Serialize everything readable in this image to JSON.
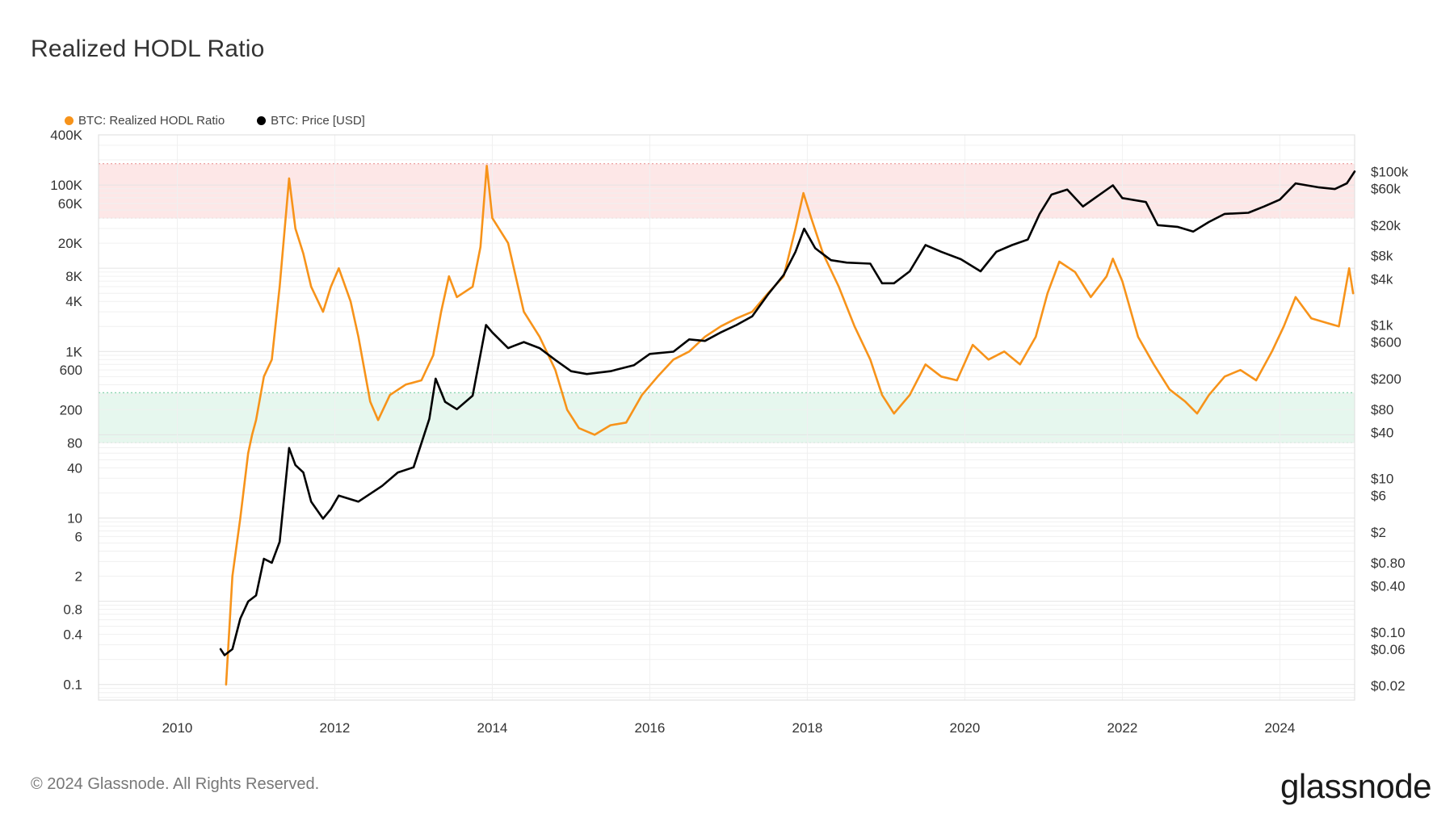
{
  "title": "Realized HODL Ratio",
  "footer": "© 2024 Glassnode. All Rights Reserved.",
  "brand": "glassnode",
  "colors": {
    "hodl": "#f7931a",
    "price": "#000000",
    "upper_band": "#fde7e7",
    "lower_band": "#e6f7ee"
  },
  "chart_data": {
    "type": "line",
    "title": "Realized HODL Ratio",
    "legend": [
      {
        "name": "BTC: Realized HODL Ratio",
        "color": "#f7931a"
      },
      {
        "name": "BTC: Price [USD]",
        "color": "#000000"
      }
    ],
    "x_ticks": [
      "2010",
      "2012",
      "2014",
      "2016",
      "2018",
      "2020",
      "2022",
      "2024"
    ],
    "x_range": [
      2009.0,
      2024.95
    ],
    "left_axis": {
      "scale": "log",
      "range": [
        0.065,
        400000
      ],
      "ticks": [
        {
          "value": 400000,
          "label": "400K"
        },
        {
          "value": 100000,
          "label": "100K"
        },
        {
          "value": 60000,
          "label": "60K"
        },
        {
          "value": 20000,
          "label": "20K"
        },
        {
          "value": 8000,
          "label": "8K"
        },
        {
          "value": 4000,
          "label": "4K"
        },
        {
          "value": 1000,
          "label": "1K"
        },
        {
          "value": 600,
          "label": "600"
        },
        {
          "value": 200,
          "label": "200"
        },
        {
          "value": 80,
          "label": "80"
        },
        {
          "value": 40,
          "label": "40"
        },
        {
          "value": 10,
          "label": "10"
        },
        {
          "value": 6,
          "label": "6"
        },
        {
          "value": 2,
          "label": "2"
        },
        {
          "value": 0.8,
          "label": "0.8"
        },
        {
          "value": 0.4,
          "label": "0.4"
        },
        {
          "value": 0.1,
          "label": "0.1"
        }
      ]
    },
    "right_axis": {
      "scale": "log",
      "range": [
        0.013,
        300000
      ],
      "ticks": [
        {
          "value": 100000,
          "label": "$100k"
        },
        {
          "value": 60000,
          "label": "$60k"
        },
        {
          "value": 20000,
          "label": "$20k"
        },
        {
          "value": 8000,
          "label": "$8k"
        },
        {
          "value": 4000,
          "label": "$4k"
        },
        {
          "value": 1000,
          "label": "$1k"
        },
        {
          "value": 600,
          "label": "$600"
        },
        {
          "value": 200,
          "label": "$200"
        },
        {
          "value": 80,
          "label": "$80"
        },
        {
          "value": 40,
          "label": "$40"
        },
        {
          "value": 10,
          "label": "$10"
        },
        {
          "value": 6,
          "label": "$6"
        },
        {
          "value": 2,
          "label": "$2"
        },
        {
          "value": 0.8,
          "label": "$0.80"
        },
        {
          "value": 0.4,
          "label": "$0.40"
        },
        {
          "value": 0.1,
          "label": "$0.10"
        },
        {
          "value": 0.06,
          "label": "$0.06"
        },
        {
          "value": 0.02,
          "label": "$0.02"
        }
      ]
    },
    "bands": [
      {
        "name": "upper",
        "from": 40000,
        "to": 180000
      },
      {
        "name": "lower",
        "from": 80,
        "to": 320
      }
    ],
    "series": [
      {
        "name": "BTC: Realized HODL Ratio",
        "axis": "left",
        "points": [
          [
            2010.62,
            0.1
          ],
          [
            2010.7,
            2
          ],
          [
            2010.8,
            10
          ],
          [
            2010.9,
            60
          ],
          [
            2010.95,
            100
          ],
          [
            2011.0,
            150
          ],
          [
            2011.1,
            500
          ],
          [
            2011.2,
            800
          ],
          [
            2011.3,
            6000
          ],
          [
            2011.42,
            120000
          ],
          [
            2011.5,
            30000
          ],
          [
            2011.6,
            15000
          ],
          [
            2011.7,
            6000
          ],
          [
            2011.85,
            3000
          ],
          [
            2011.95,
            6000
          ],
          [
            2012.05,
            10000
          ],
          [
            2012.2,
            4000
          ],
          [
            2012.3,
            1500
          ],
          [
            2012.45,
            250
          ],
          [
            2012.55,
            150
          ],
          [
            2012.7,
            300
          ],
          [
            2012.9,
            400
          ],
          [
            2013.1,
            450
          ],
          [
            2013.25,
            900
          ],
          [
            2013.35,
            3000
          ],
          [
            2013.45,
            8000
          ],
          [
            2013.55,
            4500
          ],
          [
            2013.75,
            6000
          ],
          [
            2013.85,
            18000
          ],
          [
            2013.93,
            170000
          ],
          [
            2014.0,
            40000
          ],
          [
            2014.2,
            20000
          ],
          [
            2014.4,
            3000
          ],
          [
            2014.6,
            1500
          ],
          [
            2014.8,
            600
          ],
          [
            2014.95,
            200
          ],
          [
            2015.1,
            120
          ],
          [
            2015.3,
            100
          ],
          [
            2015.5,
            130
          ],
          [
            2015.7,
            140
          ],
          [
            2015.9,
            300
          ],
          [
            2016.1,
            500
          ],
          [
            2016.3,
            800
          ],
          [
            2016.5,
            1000
          ],
          [
            2016.7,
            1500
          ],
          [
            2016.9,
            2000
          ],
          [
            2017.1,
            2500
          ],
          [
            2017.3,
            3000
          ],
          [
            2017.5,
            5000
          ],
          [
            2017.7,
            8000
          ],
          [
            2017.85,
            30000
          ],
          [
            2017.95,
            80000
          ],
          [
            2018.05,
            40000
          ],
          [
            2018.2,
            15000
          ],
          [
            2018.4,
            6000
          ],
          [
            2018.6,
            2000
          ],
          [
            2018.8,
            800
          ],
          [
            2018.95,
            300
          ],
          [
            2019.1,
            180
          ],
          [
            2019.3,
            300
          ],
          [
            2019.5,
            700
          ],
          [
            2019.7,
            500
          ],
          [
            2019.9,
            450
          ],
          [
            2020.1,
            1200
          ],
          [
            2020.3,
            800
          ],
          [
            2020.5,
            1000
          ],
          [
            2020.7,
            700
          ],
          [
            2020.9,
            1500
          ],
          [
            2021.05,
            5000
          ],
          [
            2021.2,
            12000
          ],
          [
            2021.4,
            9000
          ],
          [
            2021.6,
            4500
          ],
          [
            2021.8,
            8000
          ],
          [
            2021.88,
            13000
          ],
          [
            2022.0,
            7000
          ],
          [
            2022.2,
            1500
          ],
          [
            2022.4,
            700
          ],
          [
            2022.6,
            350
          ],
          [
            2022.8,
            250
          ],
          [
            2022.95,
            180
          ],
          [
            2023.1,
            300
          ],
          [
            2023.3,
            500
          ],
          [
            2023.5,
            600
          ],
          [
            2023.7,
            450
          ],
          [
            2023.9,
            1000
          ],
          [
            2024.05,
            2000
          ],
          [
            2024.2,
            4500
          ],
          [
            2024.4,
            2500
          ],
          [
            2024.6,
            2200
          ],
          [
            2024.75,
            2000
          ],
          [
            2024.88,
            10000
          ],
          [
            2024.93,
            5000
          ]
        ]
      },
      {
        "name": "BTC: Price [USD]",
        "axis": "right",
        "points": [
          [
            2010.55,
            0.06
          ],
          [
            2010.6,
            0.05
          ],
          [
            2010.7,
            0.06
          ],
          [
            2010.8,
            0.15
          ],
          [
            2010.9,
            0.25
          ],
          [
            2011.0,
            0.3
          ],
          [
            2011.1,
            0.9
          ],
          [
            2011.2,
            0.8
          ],
          [
            2011.3,
            1.5
          ],
          [
            2011.42,
            25
          ],
          [
            2011.5,
            15
          ],
          [
            2011.6,
            12
          ],
          [
            2011.7,
            5
          ],
          [
            2011.85,
            3
          ],
          [
            2011.95,
            4
          ],
          [
            2012.05,
            6
          ],
          [
            2012.3,
            5
          ],
          [
            2012.6,
            8
          ],
          [
            2012.8,
            12
          ],
          [
            2013.0,
            14
          ],
          [
            2013.2,
            60
          ],
          [
            2013.28,
            200
          ],
          [
            2013.4,
            100
          ],
          [
            2013.55,
            80
          ],
          [
            2013.75,
            120
          ],
          [
            2013.92,
            1000
          ],
          [
            2014.0,
            800
          ],
          [
            2014.2,
            500
          ],
          [
            2014.4,
            600
          ],
          [
            2014.6,
            500
          ],
          [
            2014.8,
            350
          ],
          [
            2015.0,
            250
          ],
          [
            2015.2,
            230
          ],
          [
            2015.5,
            250
          ],
          [
            2015.8,
            300
          ],
          [
            2016.0,
            420
          ],
          [
            2016.3,
            450
          ],
          [
            2016.5,
            650
          ],
          [
            2016.7,
            620
          ],
          [
            2016.9,
            800
          ],
          [
            2017.1,
            1000
          ],
          [
            2017.3,
            1300
          ],
          [
            2017.5,
            2500
          ],
          [
            2017.7,
            4500
          ],
          [
            2017.85,
            9000
          ],
          [
            2017.96,
            18000
          ],
          [
            2018.1,
            10000
          ],
          [
            2018.3,
            7000
          ],
          [
            2018.5,
            6500
          ],
          [
            2018.8,
            6300
          ],
          [
            2018.95,
            3500
          ],
          [
            2019.1,
            3500
          ],
          [
            2019.3,
            5000
          ],
          [
            2019.5,
            11000
          ],
          [
            2019.7,
            9000
          ],
          [
            2019.95,
            7200
          ],
          [
            2020.2,
            5000
          ],
          [
            2020.4,
            9000
          ],
          [
            2020.6,
            11000
          ],
          [
            2020.8,
            13000
          ],
          [
            2020.95,
            28000
          ],
          [
            2021.1,
            50000
          ],
          [
            2021.3,
            58000
          ],
          [
            2021.5,
            35000
          ],
          [
            2021.65,
            45000
          ],
          [
            2021.88,
            66000
          ],
          [
            2022.0,
            45000
          ],
          [
            2022.3,
            40000
          ],
          [
            2022.45,
            20000
          ],
          [
            2022.7,
            19000
          ],
          [
            2022.9,
            16500
          ],
          [
            2023.1,
            22000
          ],
          [
            2023.3,
            28000
          ],
          [
            2023.6,
            29000
          ],
          [
            2023.8,
            35000
          ],
          [
            2024.0,
            43000
          ],
          [
            2024.2,
            70000
          ],
          [
            2024.5,
            62000
          ],
          [
            2024.7,
            59000
          ],
          [
            2024.85,
            70000
          ],
          [
            2024.95,
            100000
          ]
        ]
      }
    ]
  }
}
